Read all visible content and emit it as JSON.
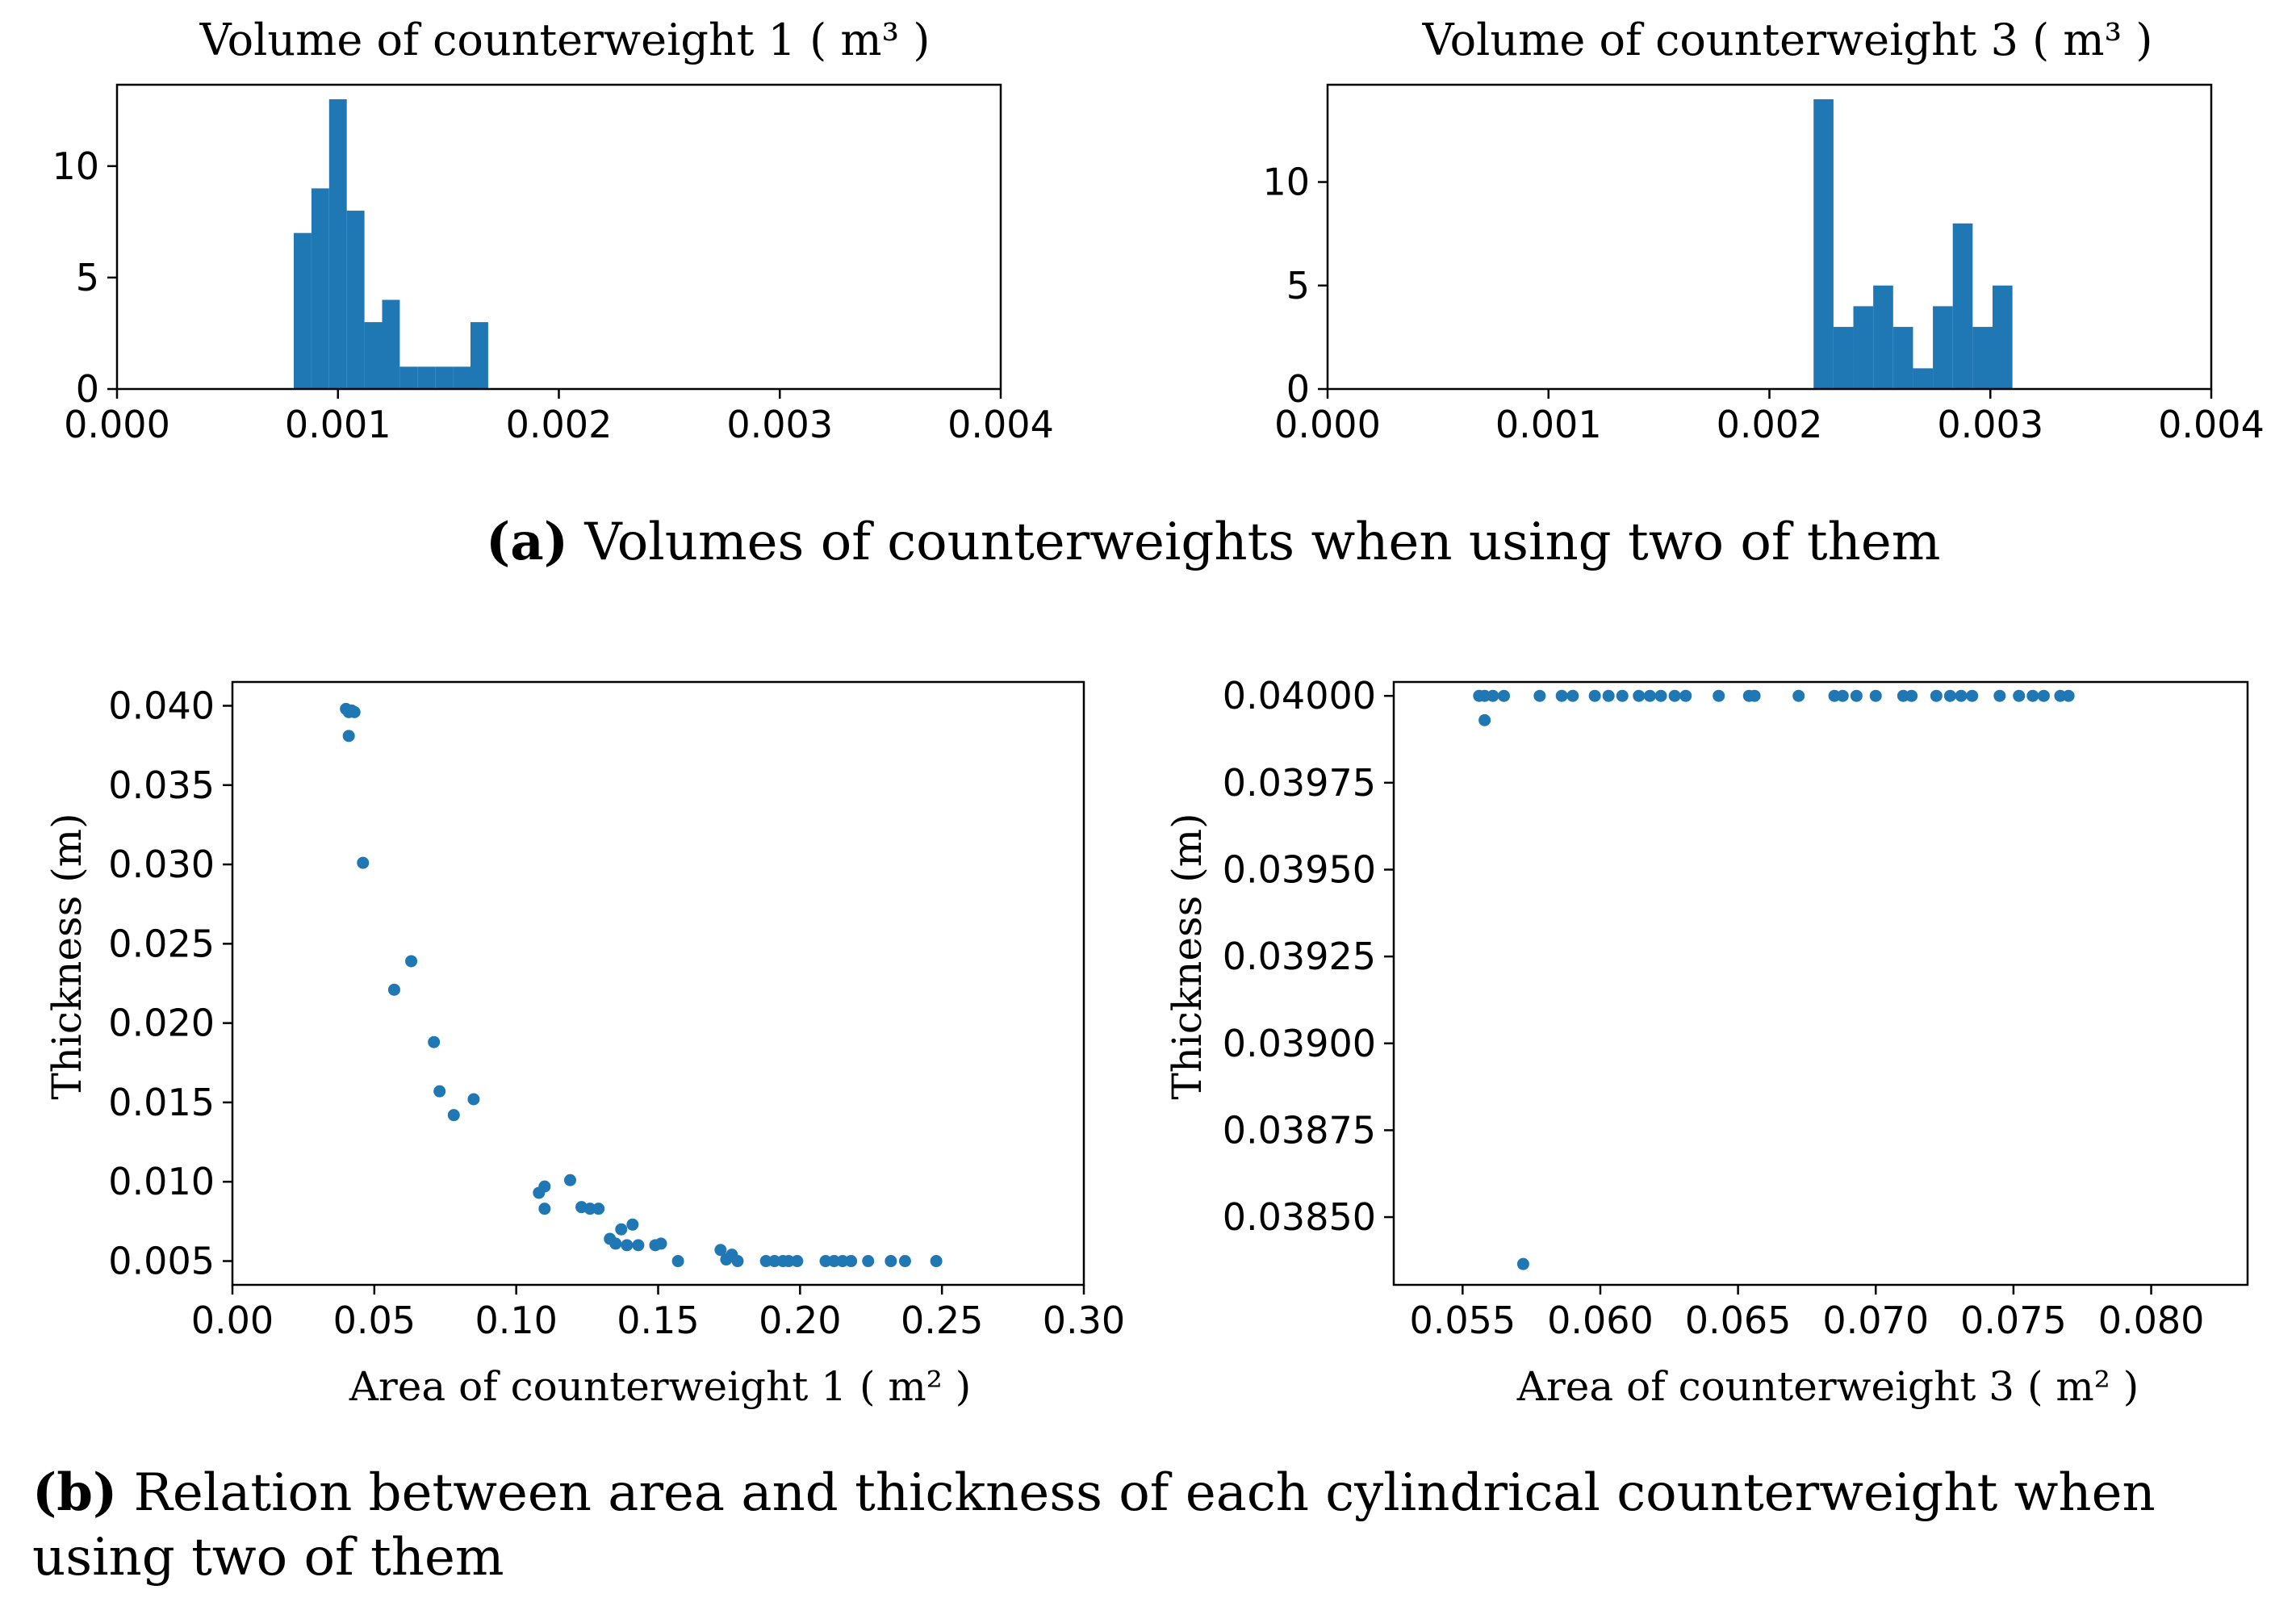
{
  "captions": {
    "a_letter": "(a)",
    "a_text": "Volumes of counterweights when using two of them",
    "b_letter": "(b)",
    "b_text": "Relation between area and thickness of each cylindrical counterweight when using two of them"
  },
  "colors": {
    "series": "#1f77b4",
    "axis": "#000000",
    "background": "#ffffff"
  },
  "chart_data": [
    {
      "id": "hist1",
      "type": "bar",
      "title": "Volume of counterweight 1 ( m³ )",
      "xlabel": "",
      "ylabel": "",
      "xlim": [
        0,
        0.004
      ],
      "ylim": [
        0,
        13.65
      ],
      "xticks": [
        0,
        0.001,
        0.002,
        0.003,
        0.004
      ],
      "xtick_labels": [
        "0.000",
        "0.001",
        "0.002",
        "0.003",
        "0.004"
      ],
      "yticks": [
        0,
        5,
        10
      ],
      "ytick_labels": [
        "0",
        "5",
        "10"
      ],
      "bin_edges": [
        0.0008,
        0.00088,
        0.00096,
        0.00104,
        0.00112,
        0.0012,
        0.00128,
        0.00136,
        0.00144,
        0.00152,
        0.0016,
        0.00168
      ],
      "values": [
        7,
        9,
        13,
        8,
        3,
        4,
        1,
        1,
        1,
        1,
        3
      ]
    },
    {
      "id": "hist2",
      "type": "bar",
      "title": "Volume of counterweight 3 ( m³ )",
      "xlabel": "",
      "ylabel": "",
      "xlim": [
        0,
        0.004
      ],
      "ylim": [
        0,
        14.7
      ],
      "xticks": [
        0,
        0.001,
        0.002,
        0.003,
        0.004
      ],
      "xtick_labels": [
        "0.000",
        "0.001",
        "0.002",
        "0.003",
        "0.004"
      ],
      "yticks": [
        0,
        5,
        10
      ],
      "ytick_labels": [
        "0",
        "5",
        "10"
      ],
      "bin_edges": [
        0.0022,
        0.00229,
        0.00238,
        0.00247,
        0.00256,
        0.00265,
        0.00274,
        0.00283,
        0.00292,
        0.00301,
        0.0031
      ],
      "values": [
        14,
        3,
        4,
        5,
        3,
        1,
        4,
        8,
        3,
        5
      ]
    },
    {
      "id": "scatter1",
      "type": "scatter",
      "title": "",
      "xlabel": "Area of counterweight 1 ( m² )",
      "ylabel": "Thickness (m)",
      "xlim": [
        0,
        0.3
      ],
      "ylim": [
        0.0035,
        0.0415
      ],
      "xticks": [
        0,
        0.05,
        0.1,
        0.15,
        0.2,
        0.25,
        0.3
      ],
      "xtick_labels": [
        "0.00",
        "0.05",
        "0.10",
        "0.15",
        "0.20",
        "0.25",
        "0.30"
      ],
      "yticks": [
        0.005,
        0.01,
        0.015,
        0.02,
        0.025,
        0.03,
        0.035,
        0.04
      ],
      "ytick_labels": [
        "0.005",
        "0.010",
        "0.015",
        "0.020",
        "0.025",
        "0.030",
        "0.035",
        "0.040"
      ],
      "points": [
        [
          0.04,
          0.0398
        ],
        [
          0.041,
          0.0396
        ],
        [
          0.042,
          0.0397
        ],
        [
          0.043,
          0.0396
        ],
        [
          0.041,
          0.0381
        ],
        [
          0.046,
          0.0301
        ],
        [
          0.057,
          0.0221
        ],
        [
          0.063,
          0.0239
        ],
        [
          0.071,
          0.0188
        ],
        [
          0.073,
          0.0157
        ],
        [
          0.078,
          0.0142
        ],
        [
          0.085,
          0.0152
        ],
        [
          0.108,
          0.0093
        ],
        [
          0.11,
          0.0097
        ],
        [
          0.11,
          0.0083
        ],
        [
          0.119,
          0.0101
        ],
        [
          0.123,
          0.0084
        ],
        [
          0.126,
          0.0083
        ],
        [
          0.129,
          0.0083
        ],
        [
          0.133,
          0.0064
        ],
        [
          0.135,
          0.0061
        ],
        [
          0.137,
          0.007
        ],
        [
          0.139,
          0.006
        ],
        [
          0.141,
          0.0073
        ],
        [
          0.143,
          0.006
        ],
        [
          0.149,
          0.006
        ],
        [
          0.151,
          0.0061
        ],
        [
          0.157,
          0.005
        ],
        [
          0.172,
          0.0057
        ],
        [
          0.174,
          0.0051
        ],
        [
          0.176,
          0.0054
        ],
        [
          0.178,
          0.005
        ],
        [
          0.188,
          0.005
        ],
        [
          0.191,
          0.005
        ],
        [
          0.194,
          0.005
        ],
        [
          0.196,
          0.005
        ],
        [
          0.199,
          0.005
        ],
        [
          0.209,
          0.005
        ],
        [
          0.212,
          0.005
        ],
        [
          0.215,
          0.005
        ],
        [
          0.218,
          0.005
        ],
        [
          0.224,
          0.005
        ],
        [
          0.232,
          0.005
        ],
        [
          0.237,
          0.005
        ],
        [
          0.248,
          0.005
        ]
      ]
    },
    {
      "id": "scatter2",
      "type": "scatter",
      "title": "",
      "xlabel": "Area of counterweight 3 ( m² )",
      "ylabel": "Thickness (m)",
      "xlim": [
        0.0525,
        0.0835
      ],
      "ylim": [
        0.038305,
        0.04004
      ],
      "xticks": [
        0.055,
        0.06,
        0.065,
        0.07,
        0.075,
        0.08
      ],
      "xtick_labels": [
        "0.055",
        "0.060",
        "0.065",
        "0.070",
        "0.075",
        "0.080"
      ],
      "yticks": [
        0.0385,
        0.03875,
        0.039,
        0.03925,
        0.0395,
        0.03975,
        0.04
      ],
      "ytick_labels": [
        "0.03850",
        "0.03875",
        "0.03900",
        "0.03925",
        "0.03950",
        "0.03975",
        "0.04000"
      ],
      "points": [
        [
          0.0556,
          0.04
        ],
        [
          0.0558,
          0.04
        ],
        [
          0.0561,
          0.04
        ],
        [
          0.0565,
          0.04
        ],
        [
          0.0558,
          0.03993
        ],
        [
          0.0572,
          0.038365
        ],
        [
          0.0578,
          0.04
        ],
        [
          0.0586,
          0.04
        ],
        [
          0.059,
          0.04
        ],
        [
          0.0598,
          0.04
        ],
        [
          0.0603,
          0.04
        ],
        [
          0.0608,
          0.04
        ],
        [
          0.0614,
          0.04
        ],
        [
          0.0618,
          0.04
        ],
        [
          0.0622,
          0.04
        ],
        [
          0.0627,
          0.04
        ],
        [
          0.0631,
          0.04
        ],
        [
          0.0643,
          0.04
        ],
        [
          0.0654,
          0.04
        ],
        [
          0.0656,
          0.04
        ],
        [
          0.0672,
          0.04
        ],
        [
          0.0685,
          0.04
        ],
        [
          0.0688,
          0.04
        ],
        [
          0.0693,
          0.04
        ],
        [
          0.07,
          0.04
        ],
        [
          0.071,
          0.04
        ],
        [
          0.0713,
          0.04
        ],
        [
          0.0722,
          0.04
        ],
        [
          0.0727,
          0.04
        ],
        [
          0.0731,
          0.04
        ],
        [
          0.0735,
          0.04
        ],
        [
          0.0745,
          0.04
        ],
        [
          0.0752,
          0.04
        ],
        [
          0.0757,
          0.04
        ],
        [
          0.0761,
          0.04
        ],
        [
          0.0767,
          0.04
        ],
        [
          0.077,
          0.04
        ]
      ]
    }
  ]
}
